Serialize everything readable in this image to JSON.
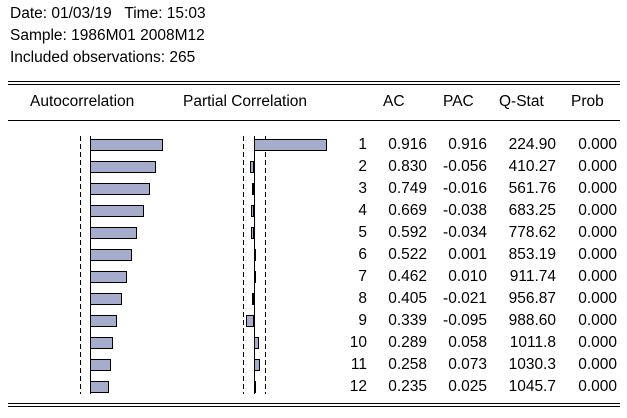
{
  "header": {
    "line1": "Date: 01/03/19   Time: 15:03",
    "line2": "Sample: 1986M01 2008M12",
    "line3": "Included observations: 265"
  },
  "columns": {
    "autocorrelation": "Autocorrelation",
    "partial_correlation": "Partial Correlation",
    "ac": "AC",
    "pac": "PAC",
    "qstat": "Q-Stat",
    "prob": "Prob"
  },
  "rows": [
    {
      "lag": "1",
      "ac": "0.916",
      "pac": "0.916",
      "q": "224.90",
      "p": "0.000"
    },
    {
      "lag": "2",
      "ac": "0.830",
      "pac": "-0.056",
      "q": "410.27",
      "p": "0.000"
    },
    {
      "lag": "3",
      "ac": "0.749",
      "pac": "-0.016",
      "q": "561.76",
      "p": "0.000"
    },
    {
      "lag": "4",
      "ac": "0.669",
      "pac": "-0.038",
      "q": "683.25",
      "p": "0.000"
    },
    {
      "lag": "5",
      "ac": "0.592",
      "pac": "-0.034",
      "q": "778.62",
      "p": "0.000"
    },
    {
      "lag": "6",
      "ac": "0.522",
      "pac": "0.001",
      "q": "853.19",
      "p": "0.000"
    },
    {
      "lag": "7",
      "ac": "0.462",
      "pac": "0.010",
      "q": "911.74",
      "p": "0.000"
    },
    {
      "lag": "8",
      "ac": "0.405",
      "pac": "-0.021",
      "q": "956.87",
      "p": "0.000"
    },
    {
      "lag": "9",
      "ac": "0.339",
      "pac": "-0.095",
      "q": "988.60",
      "p": "0.000"
    },
    {
      "lag": "10",
      "ac": "0.289",
      "pac": "0.058",
      "q": "1011.8",
      "p": "0.000"
    },
    {
      "lag": "11",
      "ac": "0.258",
      "pac": "0.073",
      "q": "1030.3",
      "p": "0.000"
    },
    {
      "lag": "12",
      "ac": "0.235",
      "pac": "0.025",
      "q": "1045.7",
      "p": "0.000"
    }
  ],
  "colors": {
    "bar_fill": "#a5accc",
    "text": "#000000",
    "background": "#ffffff"
  }
}
